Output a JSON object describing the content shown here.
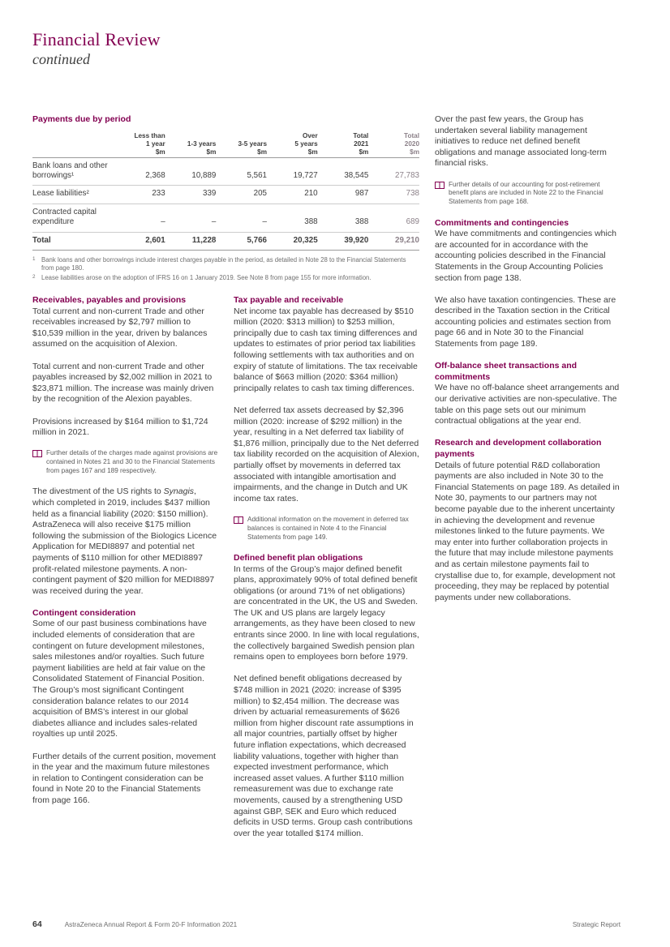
{
  "header": {
    "title": "Financial Review",
    "subtitle": "continued"
  },
  "colors": {
    "brand_mulberry": "#830051",
    "body_text": "#404040",
    "muted_prior_year": "#8c8189",
    "footnote_gray": "#6f6f6f"
  },
  "table": {
    "title": "Payments due by period",
    "headers": [
      {
        "lines": [
          "Less than",
          "1 year",
          "$m"
        ],
        "muted": false
      },
      {
        "lines": [
          "1-3 years",
          "$m"
        ],
        "muted": false
      },
      {
        "lines": [
          "3-5 years",
          "$m"
        ],
        "muted": false
      },
      {
        "lines": [
          "Over",
          "5 years",
          "$m"
        ],
        "muted": false
      },
      {
        "lines": [
          "Total",
          "2021",
          "$m"
        ],
        "muted": false
      },
      {
        "lines": [
          "Total",
          "2020",
          "$m"
        ],
        "muted": true
      }
    ],
    "rows": [
      {
        "label": "Bank loans and other borrowings¹",
        "values": [
          "2,368",
          "10,889",
          "5,561",
          "19,727",
          "38,545",
          "27,783"
        ],
        "total": false
      },
      {
        "label": "Lease liabilities²",
        "values": [
          "233",
          "339",
          "205",
          "210",
          "987",
          "738"
        ],
        "total": false
      },
      {
        "label": "Contracted capital expenditure",
        "values": [
          "–",
          "–",
          "–",
          "388",
          "388",
          "689"
        ],
        "total": false
      },
      {
        "label": "Total",
        "values": [
          "2,601",
          "11,228",
          "5,766",
          "20,325",
          "39,920",
          "29,210"
        ],
        "total": true
      }
    ],
    "footnotes": [
      {
        "marker": "1",
        "text": "Bank loans and other borrowings include interest charges payable in the period, as detailed in Note 28 to the Financial Statements from page 180."
      },
      {
        "marker": "2",
        "text": "Lease liabilities arose on the adoption of IFRS 16 on 1 January 2019. See Note 8 from page 155 for more information."
      }
    ]
  },
  "columns": [
    {
      "blocks": [
        {
          "type": "heading",
          "text": "Receivables, payables and provisions"
        },
        {
          "type": "para",
          "text": "Total current and non-current Trade and other receivables increased by $2,797 million to $10,539 million in the year, driven by balances assumed on the acquisition of Alexion."
        },
        {
          "type": "para",
          "text": "Total current and non-current Trade and other payables increased by $2,002 million in 2021 to $23,871 million. The increase was mainly driven by the recognition of the Alexion payables."
        },
        {
          "type": "para",
          "text": "Provisions increased by $164 million to $1,724 million in 2021."
        },
        {
          "type": "note",
          "icon": "open-book-icon",
          "text": "Further details of the charges made against provisions are contained in Notes 21 and 30 to the Financial Statements from pages 167 and 189 respectively."
        },
        {
          "type": "para",
          "em": [
            "Synagis"
          ],
          "text": "The divestment of the US rights to Synagis, which completed in 2019, includes $437 million held as a financial liability (2020: $150 million). AstraZeneca will also receive $175 million following the submission of the Biologics Licence Application for MEDI8897 and potential net payments of $110 million for other MEDI8897 profit-related milestone payments. A non-contingent payment of $20 million for MEDI8897 was received during the year."
        },
        {
          "type": "heading",
          "text": "Contingent consideration"
        },
        {
          "type": "para",
          "text": "Some of our past business combinations have included elements of consideration that are contingent on future development milestones, sales milestones and/or royalties. Such future payment liabilities are held at fair value on the Consolidated Statement of Financial Position. The Group’s most significant Contingent consideration balance relates to our 2014 acquisition of BMS’s interest in our global diabetes alliance and includes sales-related royalties up until 2025."
        },
        {
          "type": "para",
          "text": "Further details of the current position, movement in the year and the maximum future milestones in relation to Contingent consideration can be found in Note 20 to the Financial Statements from page 166."
        }
      ]
    },
    {
      "blocks": [
        {
          "type": "heading",
          "text": "Tax payable and receivable"
        },
        {
          "type": "para",
          "text": "Net income tax payable has decreased by $510 million (2020: $313 million) to $253 million, principally due to cash tax timing differences and updates to estimates of prior period tax liabilities following settlements with tax authorities and on expiry of statute of limitations. The tax receivable balance of $663 million (2020: $364 million) principally relates to cash tax timing differences."
        },
        {
          "type": "para",
          "text": "Net deferred tax assets decreased by $2,396 million (2020: increase of $292 million) in the year, resulting in a Net deferred tax liability of $1,876 million, principally due to the Net deferred tax liability recorded on the acquisition of Alexion, partially offset by movements in deferred tax associated with intangible amortisation and impairments, and the change in Dutch and UK income tax rates."
        },
        {
          "type": "note",
          "icon": "open-book-icon",
          "text": "Additional information on the movement in deferred tax balances is contained in Note 4 to the Financial Statements from page 149."
        },
        {
          "type": "heading",
          "text": "Defined benefit plan obligations"
        },
        {
          "type": "para",
          "text": "In terms of the Group’s major defined benefit plans, approximately 90% of total defined benefit obligations (or around 71% of net obligations) are concentrated in the UK, the US and Sweden. The UK and US plans are largely legacy arrangements, as they have been closed to new entrants since 2000. In line with local regulations, the collectively bargained Swedish pension plan remains open to employees born before 1979."
        },
        {
          "type": "para",
          "text": "Net defined benefit obligations decreased by $748 million in 2021 (2020: increase of $395 million) to $2,454 million. The decrease was driven by actuarial remeasurements of $626 million from higher discount rate assumptions in all major countries, partially offset by higher future inflation expectations, which decreased liability valuations, together with higher than expected investment performance, which increased asset values. A further $110 million remeasurement was due to exchange rate movements, caused by a strengthening USD against GBP, SEK and Euro which reduced deficits in USD terms. Group cash contributions over the year totalled $174 million."
        }
      ]
    },
    {
      "blocks": [
        {
          "type": "para",
          "text": "Over the past few years, the Group has undertaken several liability management initiatives to reduce net defined benefit obligations and manage associated long-term financial risks."
        },
        {
          "type": "note",
          "icon": "open-book-icon",
          "text": "Further details of our accounting for post-retirement benefit plans are included in Note 22 to the Financial Statements from page 168."
        },
        {
          "type": "heading",
          "text": "Commitments and contingencies"
        },
        {
          "type": "para",
          "text": "We have commitments and contingencies which are accounted for in accordance with the accounting policies described in the Financial Statements in the Group Accounting Policies section from page 138."
        },
        {
          "type": "para",
          "text": "We also have taxation contingencies. These are described in the Taxation section in the Critical accounting policies and estimates section from page 66 and in Note 30 to the Financial Statements from page 189."
        },
        {
          "type": "heading",
          "text": "Off-balance sheet transactions and commitments"
        },
        {
          "type": "para",
          "text": "We have no off-balance sheet arrangements and our derivative activities are non-speculative. The table on this page sets out our minimum contractual obligations at the year end."
        },
        {
          "type": "heading",
          "text": "Research and development collaboration payments"
        },
        {
          "type": "para",
          "text": "Details of future potential R&D collaboration payments are also included in Note 30 to the Financial Statements on page 189. As detailed in Note 30, payments to our partners may not become payable due to the inherent uncertainty in achieving the development and revenue milestones linked to the future payments. We may enter into further collaboration projects in the future that may include milestone payments and as certain milestone payments fail to crystallise due to, for example, development not proceeding, they may be replaced by potential payments under new collaborations."
        }
      ]
    }
  ],
  "footer": {
    "page_number": "64",
    "report_title": "AstraZeneca Annual Report & Form 20-F Information 2021",
    "section": "Strategic Report"
  }
}
